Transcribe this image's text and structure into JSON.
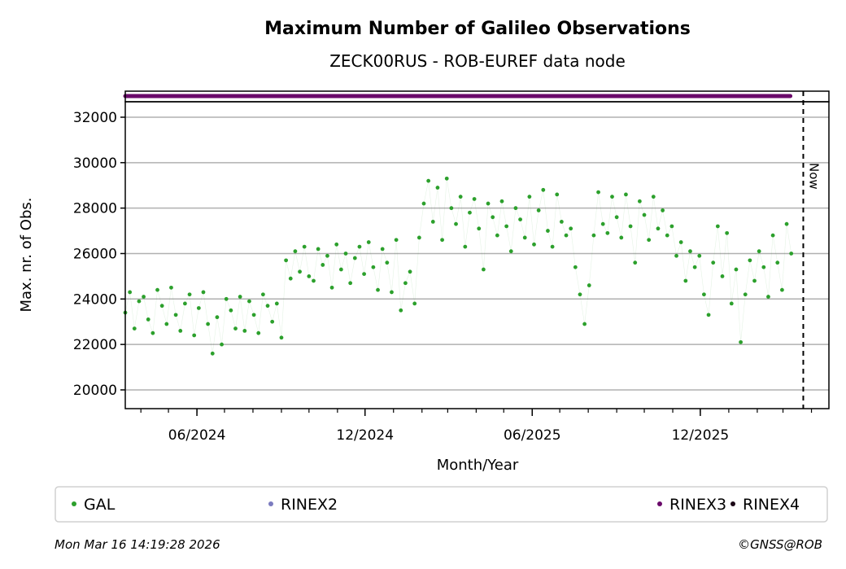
{
  "chart_data": {
    "type": "scatter",
    "title": "Maximum Number of Galileo Observations",
    "subtitle": "ZECK00RUS - ROB-EUREF data node",
    "xlabel": "Month/Year",
    "ylabel": "Max. nr. of Obs.",
    "xlim": [
      "2024-03-15",
      "2026-04-20"
    ],
    "ylim": [
      19175,
      32680
    ],
    "yticks": [
      20000,
      22000,
      24000,
      26000,
      28000,
      30000,
      32000
    ],
    "xticks": [
      {
        "date": "2024-06-01",
        "label": "06/2024"
      },
      {
        "date": "2024-12-01",
        "label": "12/2024"
      },
      {
        "date": "2025-06-01",
        "label": "06/2025"
      },
      {
        "date": "2025-12-01",
        "label": "12/2025"
      }
    ],
    "grid": "horizontal",
    "now": {
      "date": "2026-03-16",
      "label": "Now"
    },
    "series": [
      {
        "name": "GAL",
        "color": "#2ca02c",
        "start_date": "2024-03-15",
        "step_days": 5,
        "values": [
          23400,
          24300,
          22700,
          23900,
          24100,
          23100,
          22500,
          24400,
          23700,
          22900,
          24500,
          23300,
          22600,
          23800,
          24200,
          22400,
          23600,
          24300,
          22900,
          21600,
          23200,
          22000,
          24000,
          23500,
          22700,
          24100,
          22600,
          23900,
          23300,
          22500,
          24200,
          23700,
          23000,
          23800,
          22300,
          25700,
          24900,
          26100,
          25200,
          26300,
          25000,
          24800,
          26200,
          25500,
          25900,
          24500,
          26400,
          25300,
          26000,
          24700,
          25800,
          26300,
          25100,
          26500,
          25400,
          24400,
          26200,
          25600,
          24300,
          26600,
          23500,
          24700,
          25200,
          23800,
          26700,
          28200,
          29200,
          27400,
          28900,
          26600,
          29300,
          28000,
          27300,
          28500,
          26300,
          27800,
          28400,
          27100,
          25300,
          28200,
          27600,
          26800,
          28300,
          27200,
          26100,
          28000,
          27500,
          26700,
          28500,
          26400,
          27900,
          28800,
          27000,
          26300,
          28600,
          27400,
          26800,
          27100,
          25400,
          24200,
          22900,
          24600,
          26800,
          28700,
          27300,
          26900,
          28500,
          27600,
          26700,
          28600,
          27200,
          25600,
          28300,
          27700,
          26600,
          28500,
          27100,
          27900,
          26800,
          27200,
          25900,
          26500,
          24800,
          26100,
          25400,
          25900,
          24200,
          23300,
          25600,
          27200,
          25000,
          26900,
          23800,
          25300,
          22100,
          24200,
          25700,
          24800,
          26100,
          25400,
          24100,
          26800,
          25600,
          24400,
          27300,
          26000
        ]
      },
      {
        "name": "RINEX2",
        "color": "#7b7bbf"
      },
      {
        "name": "RINEX3",
        "color": "#6a0a6a",
        "availability": {
          "start": "2024-03-15",
          "end": "2026-03-09"
        }
      },
      {
        "name": "RINEX4",
        "color": "#1a0716"
      }
    ],
    "legend": "bottom"
  },
  "footer": {
    "timestamp": "Mon Mar 16 14:19:28 2026",
    "copyright": "©GNSS@ROB"
  }
}
